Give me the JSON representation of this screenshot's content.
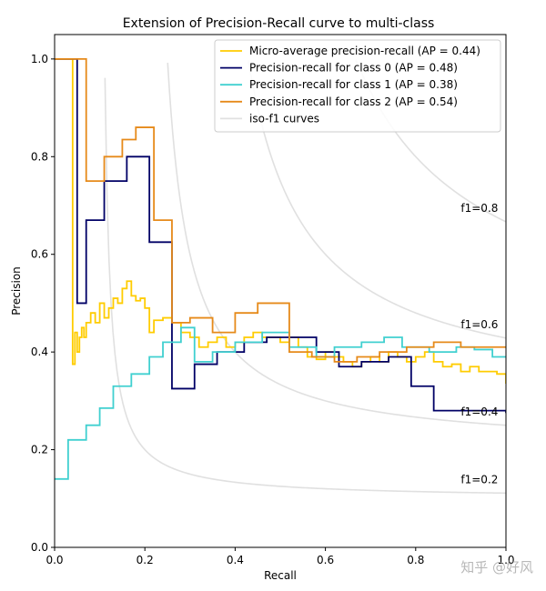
{
  "chart_data": {
    "type": "line",
    "title": "Extension of Precision-Recall curve to multi-class",
    "xlabel": "Recall",
    "ylabel": "Precision",
    "xlim": [
      0.0,
      1.0
    ],
    "ylim": [
      0.0,
      1.05
    ],
    "xticks": [
      "0.0",
      "0.2",
      "0.4",
      "0.6",
      "0.8",
      "1.0"
    ],
    "yticks": [
      "0.0",
      "0.2",
      "0.4",
      "0.6",
      "0.8",
      "1.0"
    ],
    "legend_position": "top-right",
    "iso_f1": [
      {
        "f": 0.2,
        "label": "f1=0.2"
      },
      {
        "f": 0.4,
        "label": "f1=0.4"
      },
      {
        "f": 0.6,
        "label": "f1=0.6"
      },
      {
        "f": 0.8,
        "label": "f1=0.8"
      }
    ],
    "series": [
      {
        "name": "Micro-average precision-recall (AP = 0.44)",
        "color": "#ffcc00",
        "recall": [
          0.0,
          0.04,
          0.04,
          0.045,
          0.05,
          0.055,
          0.06,
          0.065,
          0.07,
          0.08,
          0.09,
          0.1,
          0.11,
          0.12,
          0.13,
          0.14,
          0.15,
          0.16,
          0.17,
          0.18,
          0.19,
          0.2,
          0.21,
          0.22,
          0.24,
          0.26,
          0.28,
          0.3,
          0.32,
          0.34,
          0.36,
          0.38,
          0.4,
          0.42,
          0.44,
          0.46,
          0.48,
          0.5,
          0.52,
          0.54,
          0.56,
          0.58,
          0.6,
          0.62,
          0.64,
          0.66,
          0.68,
          0.7,
          0.72,
          0.74,
          0.76,
          0.78,
          0.8,
          0.82,
          0.84,
          0.86,
          0.88,
          0.9,
          0.92,
          0.94,
          0.96,
          0.98,
          1.0
        ],
        "precision": [
          1.0,
          1.0,
          0.375,
          0.44,
          0.4,
          0.43,
          0.45,
          0.43,
          0.46,
          0.48,
          0.46,
          0.5,
          0.47,
          0.49,
          0.51,
          0.5,
          0.53,
          0.545,
          0.515,
          0.505,
          0.51,
          0.49,
          0.44,
          0.465,
          0.47,
          0.46,
          0.44,
          0.43,
          0.41,
          0.42,
          0.43,
          0.41,
          0.42,
          0.43,
          0.44,
          0.43,
          0.43,
          0.42,
          0.43,
          0.41,
          0.39,
          0.385,
          0.4,
          0.39,
          0.38,
          0.37,
          0.38,
          0.39,
          0.38,
          0.4,
          0.39,
          0.38,
          0.39,
          0.4,
          0.38,
          0.37,
          0.375,
          0.36,
          0.37,
          0.36,
          0.36,
          0.355,
          0.335
        ]
      },
      {
        "name": "Precision-recall for class 0 (AP = 0.48)",
        "color": "#000066",
        "recall": [
          0.0,
          0.05,
          0.05,
          0.07,
          0.07,
          0.11,
          0.11,
          0.16,
          0.16,
          0.21,
          0.21,
          0.26,
          0.26,
          0.31,
          0.31,
          0.36,
          0.36,
          0.42,
          0.42,
          0.47,
          0.47,
          0.52,
          0.52,
          0.58,
          0.58,
          0.63,
          0.63,
          0.68,
          0.68,
          0.74,
          0.74,
          0.79,
          0.79,
          0.84,
          0.84,
          0.89,
          0.89,
          1.0
        ],
        "precision": [
          1.0,
          1.0,
          0.5,
          0.67,
          0.67,
          0.75,
          0.75,
          0.8,
          0.8,
          0.625,
          0.625,
          0.325,
          0.325,
          0.375,
          0.375,
          0.4,
          0.4,
          0.42,
          0.42,
          0.43,
          0.43,
          0.43,
          0.43,
          0.4,
          0.4,
          0.37,
          0.37,
          0.38,
          0.38,
          0.39,
          0.39,
          0.33,
          0.33,
          0.28,
          0.28,
          0.28,
          0.28,
          0.275
        ]
      },
      {
        "name": "Precision-recall for class 1 (AP = 0.38)",
        "color": "#40d0d0",
        "recall": [
          0.0,
          0.03,
          0.03,
          0.07,
          0.07,
          0.1,
          0.1,
          0.13,
          0.13,
          0.17,
          0.17,
          0.21,
          0.21,
          0.24,
          0.24,
          0.28,
          0.28,
          0.31,
          0.31,
          0.35,
          0.35,
          0.4,
          0.4,
          0.46,
          0.46,
          0.52,
          0.52,
          0.58,
          0.58,
          0.62,
          0.62,
          0.68,
          0.68,
          0.73,
          0.73,
          0.77,
          0.77,
          0.83,
          0.83,
          0.89,
          0.89,
          0.93,
          0.93,
          0.97,
          0.97,
          1.0
        ],
        "precision": [
          0.14,
          0.14,
          0.22,
          0.22,
          0.25,
          0.25,
          0.285,
          0.285,
          0.33,
          0.33,
          0.355,
          0.355,
          0.39,
          0.39,
          0.42,
          0.42,
          0.45,
          0.45,
          0.38,
          0.38,
          0.4,
          0.4,
          0.42,
          0.42,
          0.44,
          0.44,
          0.41,
          0.41,
          0.39,
          0.39,
          0.41,
          0.41,
          0.42,
          0.42,
          0.43,
          0.43,
          0.41,
          0.41,
          0.4,
          0.4,
          0.41,
          0.41,
          0.405,
          0.405,
          0.39,
          0.39
        ]
      },
      {
        "name": "Precision-recall for class 2 (AP = 0.54)",
        "color": "#e68a1a",
        "recall": [
          0.0,
          0.07,
          0.07,
          0.11,
          0.11,
          0.15,
          0.15,
          0.18,
          0.18,
          0.22,
          0.22,
          0.26,
          0.26,
          0.3,
          0.3,
          0.35,
          0.35,
          0.4,
          0.4,
          0.45,
          0.45,
          0.52,
          0.52,
          0.57,
          0.57,
          0.62,
          0.62,
          0.67,
          0.67,
          0.72,
          0.72,
          0.78,
          0.78,
          0.84,
          0.84,
          0.9,
          0.9,
          0.96,
          0.96,
          1.0
        ],
        "precision": [
          1.0,
          1.0,
          0.75,
          0.75,
          0.8,
          0.8,
          0.835,
          0.835,
          0.86,
          0.86,
          0.67,
          0.67,
          0.46,
          0.46,
          0.47,
          0.47,
          0.44,
          0.44,
          0.48,
          0.48,
          0.5,
          0.5,
          0.4,
          0.4,
          0.39,
          0.39,
          0.38,
          0.38,
          0.39,
          0.39,
          0.4,
          0.4,
          0.41,
          0.41,
          0.42,
          0.42,
          0.41,
          0.41,
          0.41,
          0.41
        ]
      }
    ],
    "iso_legend_label": "iso-f1 curves",
    "iso_color": "#e0e0e0"
  },
  "watermark": "知乎 @好风"
}
